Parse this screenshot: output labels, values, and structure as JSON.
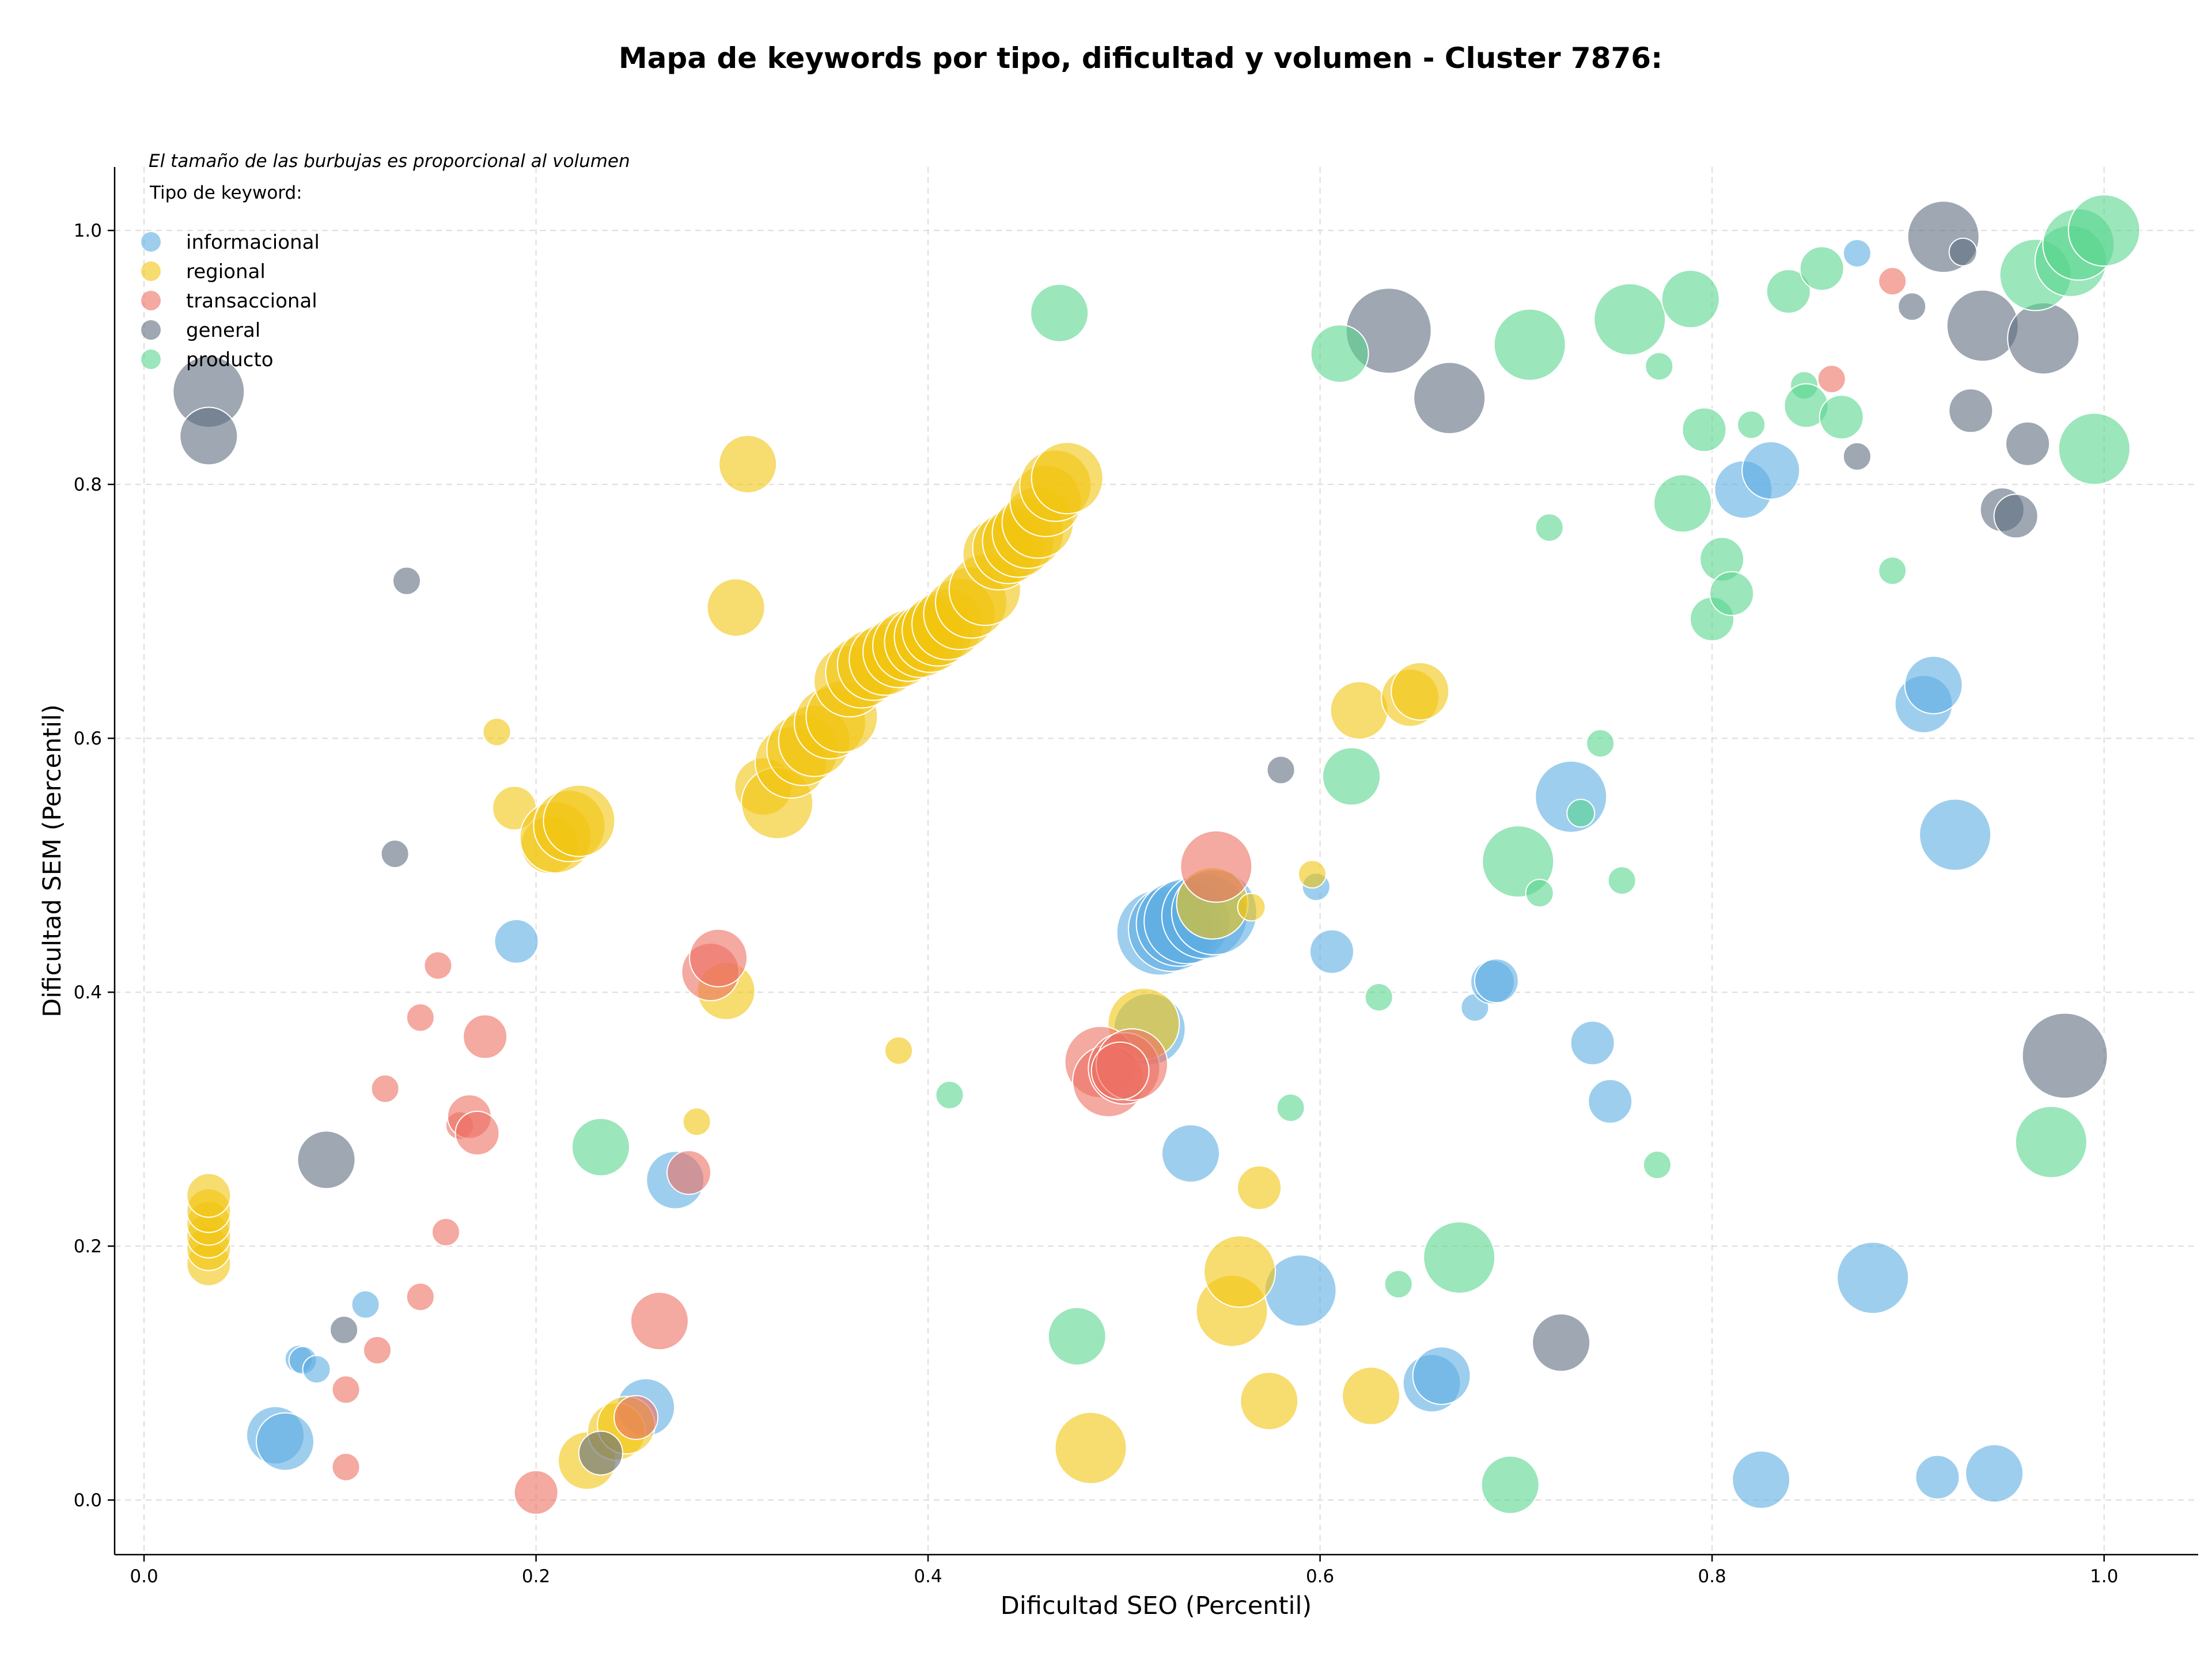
{
  "chart_data": {
    "type": "scatter",
    "title": "Mapa de keywords por tipo, dificultad y volumen - Cluster 7876:",
    "xlabel": "Dificultad SEO (Percentil)",
    "ylabel": "Dificultad SEM (Percentil)",
    "xlim": [
      -0.015,
      1.048
    ],
    "ylim": [
      -0.043,
      1.05
    ],
    "xticks": [
      "0.0",
      "0.2",
      "0.4",
      "0.6",
      "0.8",
      "1.0"
    ],
    "yticks": [
      "0.0",
      "0.2",
      "0.4",
      "0.6",
      "0.8",
      "1.0"
    ],
    "grid": true,
    "note": "El tamaño de las burbujas es proporcional al volumen",
    "legend_title": "Tipo de keyword:",
    "legend_position": "top-left",
    "series": [
      {
        "name": "informacional",
        "color": "#5dade2",
        "points": [
          [
            0.067,
            0.051,
            4
          ],
          [
            0.072,
            0.046,
            4
          ],
          [
            0.079,
            0.111,
            2
          ],
          [
            0.081,
            0.11,
            2
          ],
          [
            0.088,
            0.103,
            2
          ],
          [
            0.113,
            0.154,
            2
          ],
          [
            0.19,
            0.44,
            3
          ],
          [
            0.256,
            0.073,
            4
          ],
          [
            0.271,
            0.252,
            4
          ],
          [
            0.513,
            0.371,
            5
          ],
          [
            0.518,
            0.447,
            6
          ],
          [
            0.524,
            0.45,
            6
          ],
          [
            0.528,
            0.454,
            6
          ],
          [
            0.532,
            0.456,
            6
          ],
          [
            0.534,
            0.273,
            4
          ],
          [
            0.541,
            0.46,
            6
          ],
          [
            0.546,
            0.463,
            6
          ],
          [
            0.59,
            0.165,
            5
          ],
          [
            0.598,
            0.483,
            2
          ],
          [
            0.606,
            0.432,
            3
          ],
          [
            0.657,
            0.092,
            4
          ],
          [
            0.662,
            0.098,
            4
          ],
          [
            0.679,
            0.388,
            2
          ],
          [
            0.688,
            0.408,
            3
          ],
          [
            0.69,
            0.409,
            3
          ],
          [
            0.728,
            0.554,
            5
          ],
          [
            0.739,
            0.36,
            3
          ],
          [
            0.748,
            0.314,
            3
          ],
          [
            0.816,
            0.796,
            4
          ],
          [
            0.83,
            0.811,
            4
          ],
          [
            0.825,
            0.016,
            4
          ],
          [
            0.874,
            0.982,
            2
          ],
          [
            0.882,
            0.175,
            5
          ],
          [
            0.908,
            0.627,
            4
          ],
          [
            0.913,
            0.642,
            4
          ],
          [
            0.915,
            0.018,
            3
          ],
          [
            0.924,
            0.524,
            5
          ],
          [
            0.944,
            0.021,
            4
          ]
        ]
      },
      {
        "name": "regional",
        "color": "#f1c40f",
        "points": [
          [
            0.033,
            0.186,
            3
          ],
          [
            0.033,
            0.198,
            3
          ],
          [
            0.033,
            0.208,
            3
          ],
          [
            0.033,
            0.218,
            3
          ],
          [
            0.033,
            0.228,
            3
          ],
          [
            0.033,
            0.24,
            3
          ],
          [
            0.18,
            0.605,
            2
          ],
          [
            0.189,
            0.545,
            3
          ],
          [
            0.207,
            0.516,
            4
          ],
          [
            0.21,
            0.522,
            5
          ],
          [
            0.217,
            0.531,
            5
          ],
          [
            0.222,
            0.535,
            5
          ],
          [
            0.226,
            0.031,
            4
          ],
          [
            0.241,
            0.054,
            4
          ],
          [
            0.246,
            0.059,
            4
          ],
          [
            0.282,
            0.298,
            2
          ],
          [
            0.297,
            0.401,
            4
          ],
          [
            0.302,
            0.703,
            4
          ],
          [
            0.308,
            0.816,
            4
          ],
          [
            0.316,
            0.562,
            4
          ],
          [
            0.323,
            0.549,
            5
          ],
          [
            0.33,
            0.581,
            5
          ],
          [
            0.336,
            0.591,
            5
          ],
          [
            0.342,
            0.598,
            5
          ],
          [
            0.35,
            0.612,
            5
          ],
          [
            0.356,
            0.617,
            5
          ],
          [
            0.36,
            0.645,
            5
          ],
          [
            0.366,
            0.652,
            5
          ],
          [
            0.372,
            0.658,
            5
          ],
          [
            0.378,
            0.662,
            5
          ],
          [
            0.385,
            0.668,
            5
          ],
          [
            0.39,
            0.673,
            5
          ],
          [
            0.396,
            0.676,
            5
          ],
          [
            0.401,
            0.68,
            5
          ],
          [
            0.405,
            0.685,
            5
          ],
          [
            0.41,
            0.69,
            5
          ],
          [
            0.385,
            0.354,
            2
          ],
          [
            0.416,
            0.698,
            5
          ],
          [
            0.422,
            0.707,
            5
          ],
          [
            0.429,
            0.717,
            5
          ],
          [
            0.436,
            0.745,
            5
          ],
          [
            0.441,
            0.75,
            5
          ],
          [
            0.446,
            0.755,
            5
          ],
          [
            0.451,
            0.762,
            5
          ],
          [
            0.456,
            0.77,
            5
          ],
          [
            0.46,
            0.787,
            5
          ],
          [
            0.465,
            0.799,
            5
          ],
          [
            0.471,
            0.805,
            5
          ],
          [
            0.483,
            0.041,
            5
          ],
          [
            0.51,
            0.375,
            5
          ],
          [
            0.545,
            0.47,
            5
          ],
          [
            0.555,
            0.149,
            5
          ],
          [
            0.559,
            0.18,
            5
          ],
          [
            0.565,
            0.467,
            2
          ],
          [
            0.569,
            0.246,
            3
          ],
          [
            0.574,
            0.078,
            4
          ],
          [
            0.596,
            0.493,
            2
          ],
          [
            0.62,
            0.622,
            4
          ],
          [
            0.626,
            0.082,
            4
          ],
          [
            0.646,
            0.632,
            4
          ],
          [
            0.651,
            0.637,
            4
          ]
        ]
      },
      {
        "name": "transaccional",
        "color": "#ec7063",
        "points": [
          [
            0.103,
            0.026,
            2
          ],
          [
            0.103,
            0.087,
            2
          ],
          [
            0.119,
            0.118,
            2
          ],
          [
            0.123,
            0.324,
            2
          ],
          [
            0.141,
            0.16,
            2
          ],
          [
            0.141,
            0.38,
            2
          ],
          [
            0.15,
            0.421,
            2
          ],
          [
            0.154,
            0.211,
            2
          ],
          [
            0.161,
            0.295,
            2
          ],
          [
            0.166,
            0.302,
            3
          ],
          [
            0.17,
            0.289,
            3
          ],
          [
            0.174,
            0.365,
            3
          ],
          [
            0.2,
            0.006,
            3
          ],
          [
            0.251,
            0.065,
            3
          ],
          [
            0.263,
            0.141,
            4
          ],
          [
            0.278,
            0.258,
            3
          ],
          [
            0.289,
            0.416,
            4
          ],
          [
            0.293,
            0.427,
            4
          ],
          [
            0.488,
            0.345,
            5
          ],
          [
            0.492,
            0.33,
            5
          ],
          [
            0.5,
            0.34,
            5
          ],
          [
            0.504,
            0.343,
            5
          ],
          [
            0.498,
            0.338,
            4
          ],
          [
            0.547,
            0.499,
            5
          ],
          [
            0.861,
            0.883,
            2
          ],
          [
            0.892,
            0.96,
            2
          ]
        ]
      },
      {
        "name": "general",
        "color": "#5d6d7e",
        "points": [
          [
            0.033,
            0.873,
            5
          ],
          [
            0.033,
            0.838,
            4
          ],
          [
            0.093,
            0.268,
            4
          ],
          [
            0.102,
            0.134,
            2
          ],
          [
            0.128,
            0.509,
            2
          ],
          [
            0.134,
            0.724,
            2
          ],
          [
            0.233,
            0.037,
            3
          ],
          [
            0.58,
            0.575,
            2
          ],
          [
            0.635,
            0.921,
            6
          ],
          [
            0.666,
            0.868,
            5
          ],
          [
            0.723,
            0.124,
            4
          ],
          [
            0.874,
            0.822,
            2
          ],
          [
            0.902,
            0.94,
            2
          ],
          [
            0.918,
            0.995,
            5
          ],
          [
            0.928,
            0.983,
            2
          ],
          [
            0.932,
            0.858,
            3
          ],
          [
            0.938,
            0.925,
            5
          ],
          [
            0.948,
            0.78,
            3
          ],
          [
            0.955,
            0.775,
            3
          ],
          [
            0.961,
            0.832,
            3
          ],
          [
            0.969,
            0.915,
            5
          ],
          [
            0.98,
            0.35,
            6
          ]
        ]
      },
      {
        "name": "producto",
        "color": "#58d68d",
        "points": [
          [
            0.233,
            0.278,
            4
          ],
          [
            0.411,
            0.319,
            2
          ],
          [
            0.467,
            0.935,
            4
          ],
          [
            0.476,
            0.129,
            4
          ],
          [
            0.585,
            0.309,
            2
          ],
          [
            0.61,
            0.903,
            4
          ],
          [
            0.616,
            0.57,
            4
          ],
          [
            0.63,
            0.396,
            2
          ],
          [
            0.64,
            0.17,
            2
          ],
          [
            0.671,
            0.191,
            5
          ],
          [
            0.697,
            0.012,
            4
          ],
          [
            0.701,
            0.503,
            5
          ],
          [
            0.707,
            0.91,
            5
          ],
          [
            0.712,
            0.478,
            2
          ],
          [
            0.717,
            0.766,
            2
          ],
          [
            0.733,
            0.541,
            2
          ],
          [
            0.743,
            0.596,
            2
          ],
          [
            0.754,
            0.488,
            2
          ],
          [
            0.758,
            0.93,
            5
          ],
          [
            0.772,
            0.264,
            2
          ],
          [
            0.773,
            0.893,
            2
          ],
          [
            0.785,
            0.785,
            4
          ],
          [
            0.789,
            0.946,
            4
          ],
          [
            0.796,
            0.843,
            3
          ],
          [
            0.8,
            0.694,
            3
          ],
          [
            0.805,
            0.741,
            3
          ],
          [
            0.81,
            0.714,
            3
          ],
          [
            0.82,
            0.847,
            2
          ],
          [
            0.839,
            0.952,
            3
          ],
          [
            0.847,
            0.878,
            2
          ],
          [
            0.848,
            0.862,
            3
          ],
          [
            0.856,
            0.97,
            3
          ],
          [
            0.866,
            0.853,
            3
          ],
          [
            0.892,
            0.732,
            2
          ],
          [
            0.965,
            0.965,
            5
          ],
          [
            0.973,
            0.282,
            5
          ],
          [
            0.983,
            0.976,
            5
          ],
          [
            0.987,
            0.989,
            5
          ],
          [
            0.995,
            0.828,
            5
          ],
          [
            1.0,
            1.0,
            5
          ]
        ]
      }
    ]
  }
}
